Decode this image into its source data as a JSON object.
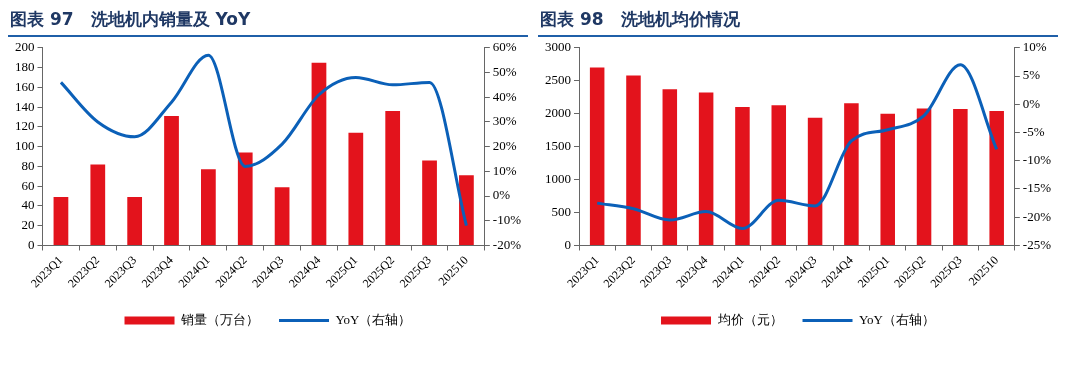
{
  "chart_data": [
    {
      "type": "bar",
      "title": "图表 97　洗地机内销量及 YoY",
      "categories": [
        "2023Q1",
        "2023Q2",
        "2023Q3",
        "2023Q4",
        "2024Q1",
        "2024Q2",
        "2024Q3",
        "2024Q4",
        "2025Q1",
        "2025Q2",
        "2025Q3",
        "202510"
      ],
      "series": [
        {
          "name": "销量（万台）",
          "color": "#e3131c",
          "values": [
            49,
            82,
            49,
            131,
            77,
            94,
            59,
            185,
            114,
            136,
            86,
            71
          ]
        },
        {
          "name": "YoY（右轴）",
          "type": "line",
          "axis": "y2",
          "color": "#0b60b8",
          "values": [
            46,
            30,
            24,
            38,
            57,
            12,
            21,
            41,
            48,
            45,
            46,
            -12
          ]
        }
      ],
      "ylim": [
        0,
        200
      ],
      "yticks": [
        0,
        20,
        40,
        60,
        80,
        100,
        120,
        140,
        160,
        180,
        200
      ],
      "y2lim": [
        -20,
        60
      ],
      "y2ticks": [
        {
          "value": -20,
          "label": "-20%"
        },
        {
          "value": -10,
          "label": "-10%"
        },
        {
          "value": 0,
          "label": "0%"
        },
        {
          "value": 10,
          "label": "10%"
        },
        {
          "value": 20,
          "label": "20%"
        },
        {
          "value": 30,
          "label": "30%"
        },
        {
          "value": 40,
          "label": "40%"
        },
        {
          "value": 50,
          "label": "50%"
        },
        {
          "value": 60,
          "label": "60%"
        }
      ],
      "legend": "bottom",
      "marker": "none"
    },
    {
      "type": "bar",
      "title": "图表 98　洗地机均价情况",
      "categories": [
        "2023Q1",
        "2023Q2",
        "2023Q3",
        "2023Q4",
        "2024Q1",
        "2024Q2",
        "2024Q3",
        "2024Q4",
        "2025Q1",
        "2025Q2",
        "2025Q3",
        "202510"
      ],
      "series": [
        {
          "name": "均价（元）",
          "color": "#e3131c",
          "values": [
            2700,
            2580,
            2370,
            2320,
            2100,
            2130,
            1940,
            2160,
            2000,
            2080,
            2070,
            2040
          ]
        },
        {
          "name": "YoY（右轴）",
          "type": "line",
          "axis": "y2",
          "color": "#0b60b8",
          "values": [
            -17.5,
            -18.5,
            -20.5,
            -19,
            -22,
            -17,
            -18,
            -6.5,
            -4.5,
            -2,
            7,
            -8
          ]
        }
      ],
      "ylim": [
        0,
        3000
      ],
      "yticks": [
        0,
        500,
        1000,
        1500,
        2000,
        2500,
        3000
      ],
      "y2lim": [
        -25,
        10
      ],
      "y2ticks": [
        {
          "value": -25,
          "label": "-25%"
        },
        {
          "value": -20,
          "label": "-20%"
        },
        {
          "value": -15,
          "label": "-15%"
        },
        {
          "value": -10,
          "label": "-10%"
        },
        {
          "value": -5,
          "label": "-5%"
        },
        {
          "value": 0,
          "label": "0%"
        },
        {
          "value": 5,
          "label": "5%"
        },
        {
          "value": 10,
          "label": "10%"
        }
      ],
      "legend": "bottom",
      "marker": "none"
    }
  ]
}
